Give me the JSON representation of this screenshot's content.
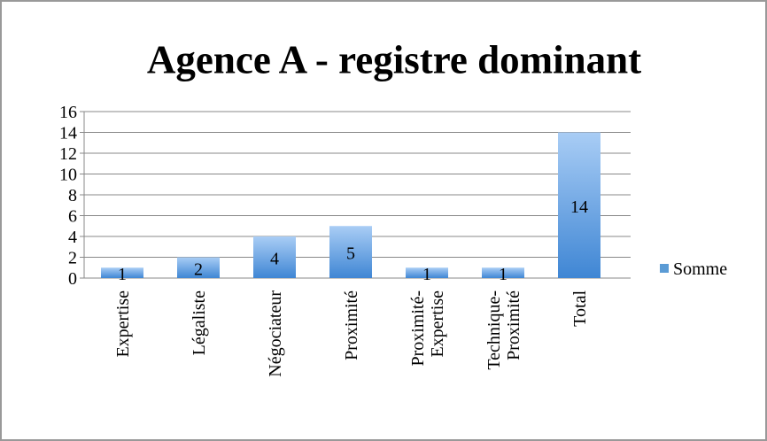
{
  "chart_data": {
    "type": "bar",
    "title": "Agence  A - registre dominant",
    "categories": [
      "Expertise",
      "Légaliste",
      "Négociateur",
      "Proximité",
      "Proximité-\nExpertise",
      "Technique-\nProximité",
      "Total"
    ],
    "series": [
      {
        "name": "Somme",
        "color": "#5b9bd5",
        "values": [
          1,
          2,
          4,
          5,
          1,
          1,
          14
        ]
      }
    ],
    "ylim": [
      0,
      16
    ],
    "yticks": [
      0,
      2,
      4,
      6,
      8,
      10,
      12,
      14,
      16
    ],
    "grid": true,
    "legend": "right",
    "data_labels": true
  }
}
